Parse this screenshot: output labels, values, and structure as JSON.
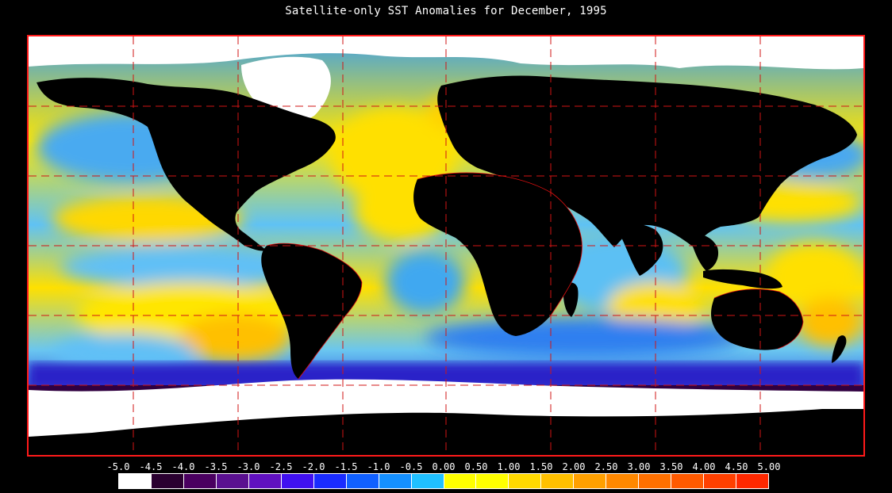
{
  "title": "Satellite-only SST Anomalies for December, 1995",
  "colors": {
    "frame": "#ff1a1a",
    "grid": "#d21414",
    "land": "#000000",
    "ice": "#ffffff",
    "coast": "#e01010"
  },
  "scale": {
    "labels": [
      "-5.0",
      "-4.5",
      "-4.0",
      "-3.5",
      "-3.0",
      "-2.5",
      "-2.0",
      "-1.5",
      "-1.0",
      "-0.5",
      "0.00",
      "0.50",
      "1.00",
      "1.50",
      "2.00",
      "2.50",
      "3.00",
      "3.50",
      "4.00",
      "4.50",
      "5.00"
    ],
    "colors": [
      "#ffffff",
      "#2a0030",
      "#4a0060",
      "#5a1090",
      "#6010c0",
      "#4010f0",
      "#1a2cff",
      "#1060ff",
      "#1590ff",
      "#20c0ff",
      "#ffff00",
      "#ffff00",
      "#ffd800",
      "#ffc000",
      "#ffa000",
      "#ff8800",
      "#ff7000",
      "#ff5a00",
      "#ff4000",
      "#ff2800"
    ]
  }
}
